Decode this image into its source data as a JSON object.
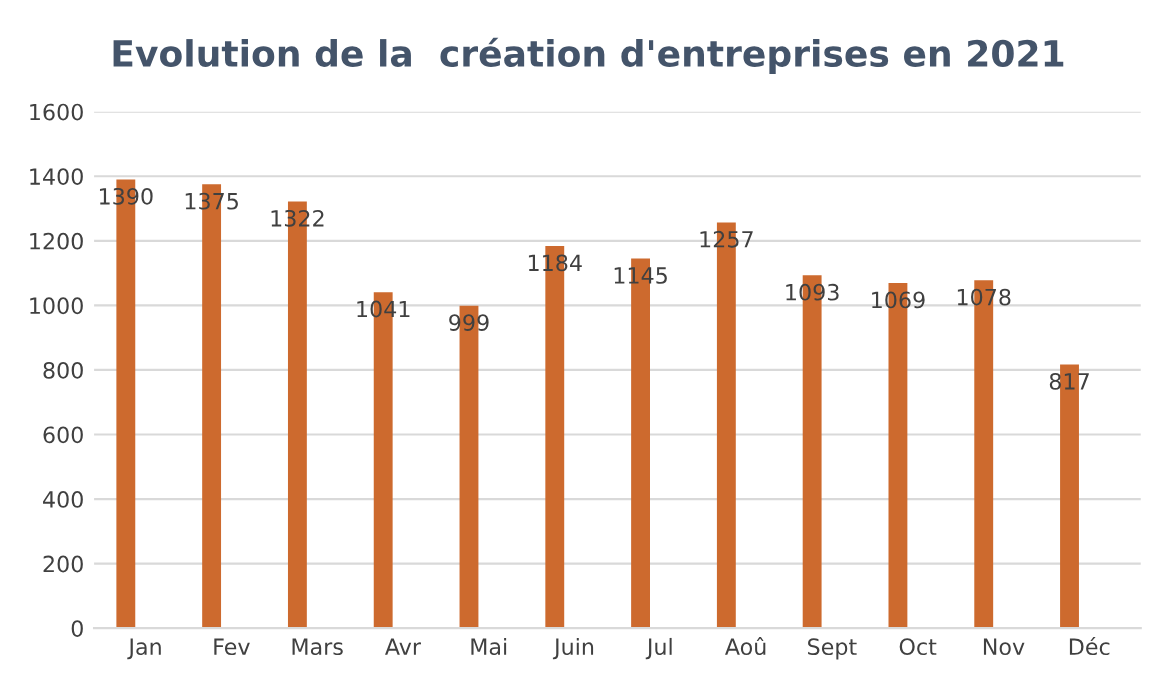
{
  "chart_data": {
    "type": "bar",
    "title": "Evolution de la  création d'entreprises en 2021",
    "categories": [
      "Jan",
      "Fev",
      "Mars",
      "Avr",
      "Mai",
      "Juin",
      "Jul",
      "Aoû",
      "Sept",
      "Oct",
      "Nov",
      "Déc"
    ],
    "values": [
      1390,
      1375,
      1322,
      1041,
      999,
      1184,
      1145,
      1257,
      1093,
      1069,
      1078,
      817
    ],
    "color": "#cd6a2e",
    "ylim": [
      0,
      1600
    ],
    "yticks": [
      0,
      200,
      400,
      600,
      800,
      1000,
      1200,
      1400,
      1600
    ],
    "grid": "y",
    "data_labels": true
  }
}
